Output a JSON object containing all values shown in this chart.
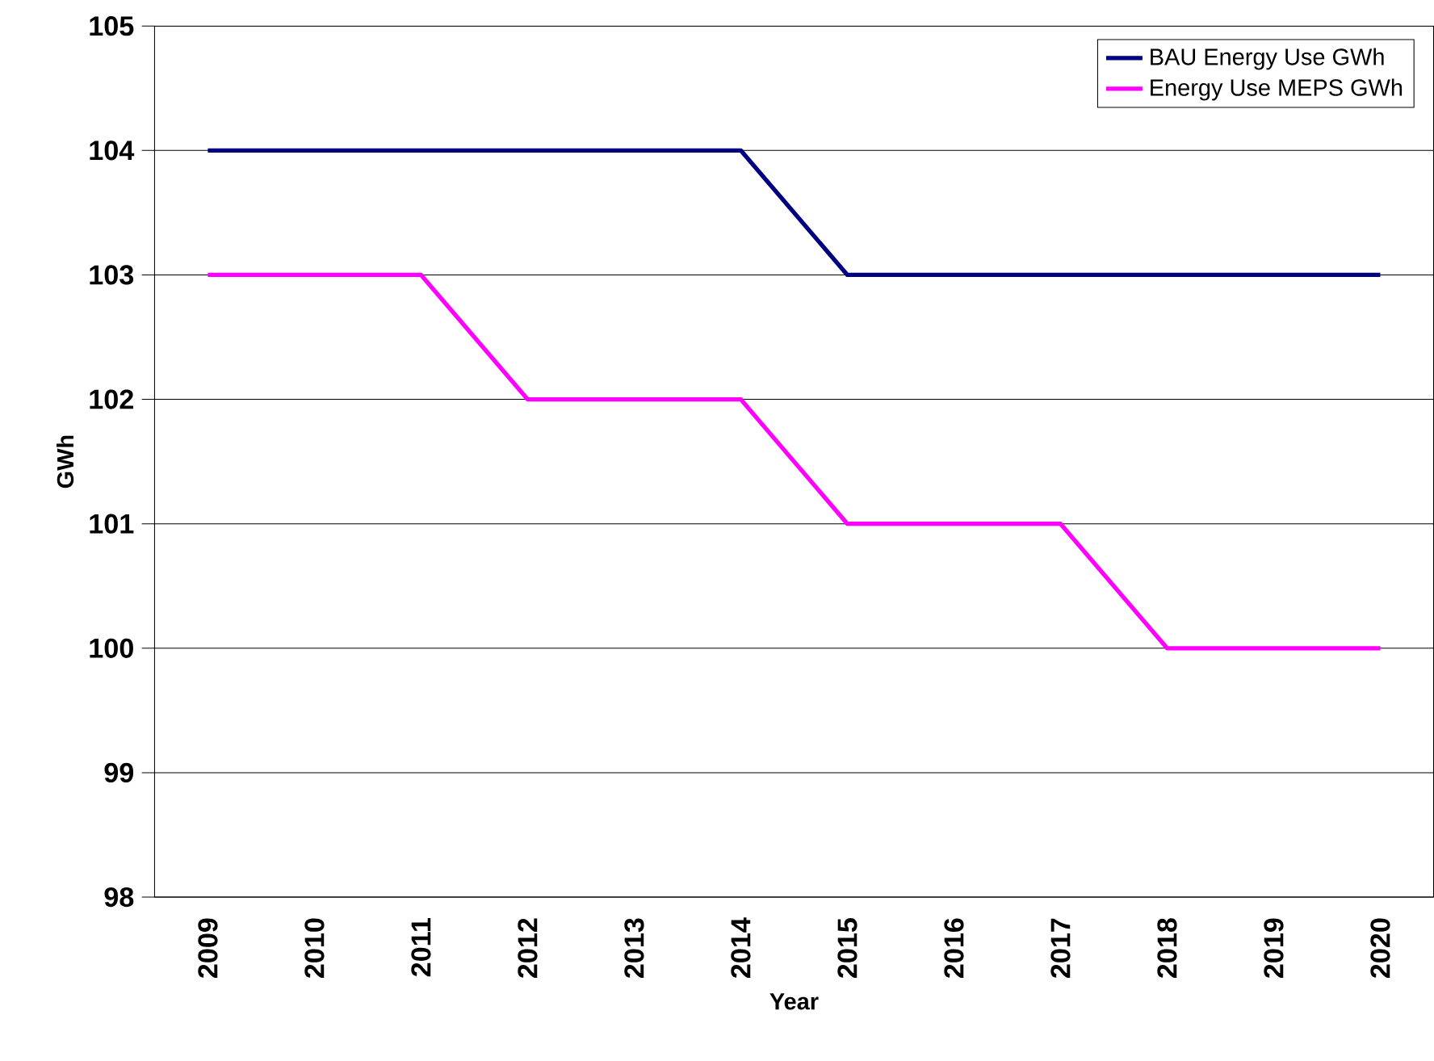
{
  "chart_data": {
    "type": "line",
    "xlabel": "Year",
    "ylabel": "GWh",
    "categories": [
      "2009",
      "2010",
      "2011",
      "2012",
      "2013",
      "2014",
      "2015",
      "2016",
      "2017",
      "2018",
      "2019",
      "2020"
    ],
    "series": [
      {
        "name": "BAU Energy Use GWh",
        "color": "#000080",
        "values": [
          104,
          104,
          104,
          104,
          104,
          104,
          103,
          103,
          103,
          103,
          103,
          103
        ]
      },
      {
        "name": "Energy Use MEPS GWh",
        "color": "#ff00ff",
        "values": [
          103,
          103,
          103,
          102,
          102,
          102,
          101,
          101,
          101,
          100,
          100,
          100
        ]
      }
    ],
    "ylim": [
      98,
      105
    ],
    "yticks": [
      98,
      99,
      100,
      101,
      102,
      103,
      104,
      105
    ],
    "grid": "y",
    "legend": "top right",
    "marker": "none",
    "line_style": "solid"
  }
}
